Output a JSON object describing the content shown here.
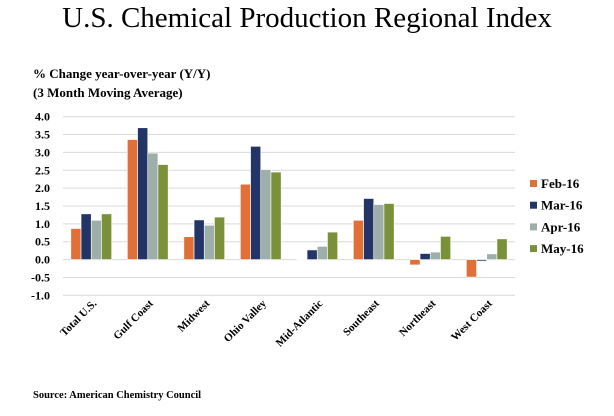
{
  "chart_data": {
    "type": "bar",
    "title": "U.S. Chemical Production Regional Index",
    "ylabel_lines": [
      "% Change year-over-year (Y/Y)",
      "(3 Month Moving Average)"
    ],
    "xlabel": "",
    "ylim": [
      -1.0,
      4.0
    ],
    "yticks": [
      "4.0",
      "3.5",
      "3.0",
      "2.5",
      "2.0",
      "1.5",
      "1.0",
      "0.5",
      "0.0",
      "-0.5",
      "-1.0"
    ],
    "grid": true,
    "legend_position": "right",
    "categories": [
      "Total U.S.",
      "Gulf Coast",
      "Midwest",
      "Ohio Valley",
      "Mid-Atlantic",
      "Southeast",
      "Northeast",
      "West Coast"
    ],
    "series": [
      {
        "name": "Feb-16",
        "color": "#E07038",
        "values": [
          0.87,
          3.36,
          0.64,
          2.11,
          0.01,
          1.1,
          -0.15,
          -0.49
        ]
      },
      {
        "name": "Mar-16",
        "color": "#233467",
        "values": [
          1.28,
          3.69,
          1.11,
          3.17,
          0.27,
          1.71,
          0.17,
          -0.04
        ]
      },
      {
        "name": "Apr-16",
        "color": "#9EAEA8",
        "values": [
          1.1,
          2.98,
          0.96,
          2.52,
          0.37,
          1.54,
          0.21,
          0.16
        ]
      },
      {
        "name": "May-16",
        "color": "#7A913A",
        "values": [
          1.28,
          2.66,
          1.19,
          2.45,
          0.77,
          1.57,
          0.65,
          0.58
        ]
      }
    ],
    "source": "Source: American Chemistry Council"
  }
}
